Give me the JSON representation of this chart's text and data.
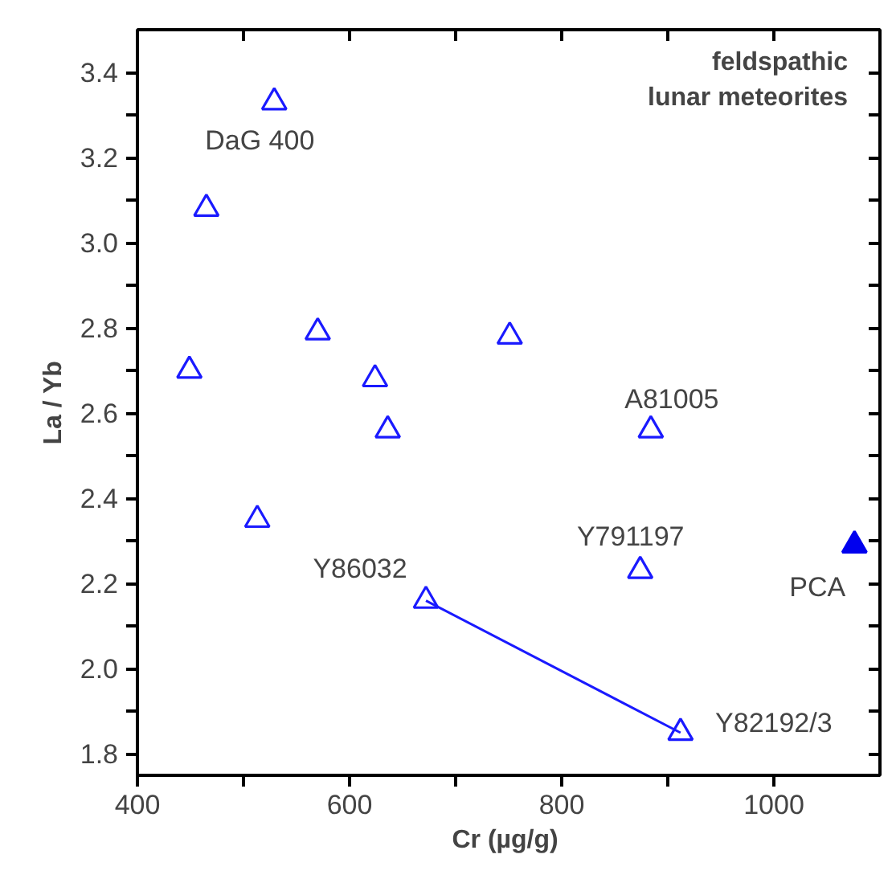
{
  "chart_data": {
    "type": "scatter",
    "xlabel": "Cr  (µg/g)",
    "ylabel": "La / Yb",
    "xlim": [
      400,
      1100
    ],
    "ylim": [
      1.75,
      3.5
    ],
    "xticks": [
      400,
      {
        "value": 500,
        "label": null
      },
      600,
      {
        "value": 700,
        "label": null
      },
      800,
      {
        "value": 900,
        "label": null
      },
      1000
    ],
    "yticks": [
      1.8,
      {
        "value": 1.9,
        "label": null
      },
      {
        "value": 2.0,
        "label": "2.0"
      },
      {
        "value": 2.1,
        "label": null
      },
      2.2,
      {
        "value": 2.3,
        "label": null
      },
      2.4,
      {
        "value": 2.5,
        "label": null
      },
      2.6,
      {
        "value": 2.7,
        "label": null
      },
      2.8,
      {
        "value": 2.9,
        "label": null
      },
      {
        "value": 3.0,
        "label": "3.0"
      },
      {
        "value": 3.1,
        "label": null
      },
      3.2,
      {
        "value": 3.3,
        "label": null
      },
      3.4
    ],
    "grid": false,
    "marker": "triangle",
    "series": [
      {
        "color": "#1a1aff",
        "x": [
          529,
          465,
          449,
          570,
          624,
          636,
          513,
          751,
          884,
          874,
          672,
          912
        ],
        "values": [
          3.33,
          3.08,
          2.7,
          2.79,
          2.68,
          2.56,
          2.35,
          2.78,
          2.56,
          2.23,
          2.16,
          1.85
        ]
      },
      {
        "type": "line",
        "color": "#1a1aff",
        "marker": "none",
        "x": [
          672,
          912
        ],
        "values": [
          2.16,
          1.85
        ]
      },
      {
        "color": "#0000ee",
        "x": [
          1076
        ],
        "values": [
          2.29
        ]
      }
    ],
    "annotations": [
      {
        "text": "DaG 400",
        "x": 529,
        "y": 3.33
      },
      {
        "text": "A81005",
        "x": 884,
        "y": 2.56
      },
      {
        "text": "Y791197",
        "x": 874,
        "y": 2.23
      },
      {
        "text": "Y86032",
        "x": 672,
        "y": 2.16
      },
      {
        "text": "Y82192/3",
        "x": 912,
        "y": 1.85
      },
      {
        "text": "PCA",
        "x": 1076,
        "y": 2.29
      },
      "feldspathic\nlunar meteorites"
    ]
  }
}
